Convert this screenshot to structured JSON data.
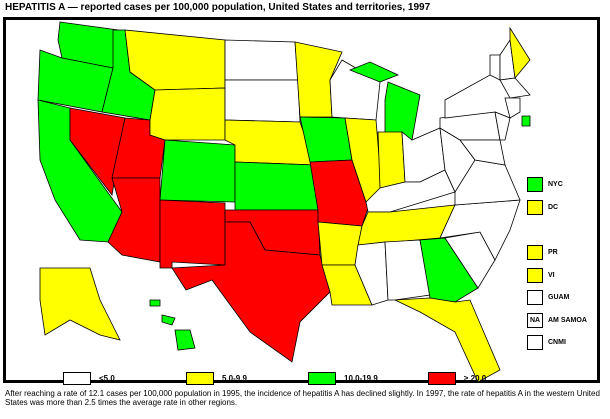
{
  "title": "HEPATITIS A — reported cases per 100,000 population, United States and territories, 1997",
  "colors": {
    "lt5": "#ffffff",
    "5to9.9": "#ffff00",
    "10to19.9": "#00ff00",
    "ge20": "#ff0000"
  },
  "legend": [
    {
      "label": "<5.0",
      "color": "#ffffff"
    },
    {
      "label": "5.0-9.9",
      "color": "#ffff00"
    },
    {
      "label": "10.0-19.9",
      "color": "#00ff00"
    },
    {
      "label": "≥ 20.0",
      "color": "#ff0000"
    }
  ],
  "insets": [
    {
      "label": "NYC",
      "color": "#00ff00",
      "mark": ""
    },
    {
      "label": "DC",
      "color": "#ffff00",
      "mark": ""
    },
    {
      "label": "PR",
      "color": "#ffff00",
      "mark": ""
    },
    {
      "label": "VI",
      "color": "#ffff00",
      "mark": ""
    },
    {
      "label": "GUAM",
      "color": "#ffffff",
      "mark": ""
    },
    {
      "label": "AM SAMOA",
      "color": "#ffffff",
      "mark": "NA"
    },
    {
      "label": "CNMI",
      "color": "#ffffff",
      "mark": ""
    }
  ],
  "states": {
    "WA": "10.0-19.9",
    "OR": "10.0-19.9",
    "CA": "10.0-19.9",
    "ID": "10.0-19.9",
    "NV": "≥ 20.0",
    "UT": "≥ 20.0",
    "AZ": "≥ 20.0",
    "MT": "5.0-9.9",
    "WY": "5.0-9.9",
    "CO": "10.0-19.9",
    "NM": "≥ 20.0",
    "ND": "<5.0",
    "SD": "<5.0",
    "NE": "5.0-9.9",
    "KS": "10.0-19.9",
    "OK": "≥ 20.0",
    "TX": "≥ 20.0",
    "MN": "5.0-9.9",
    "IA": "10.0-19.9",
    "MO": "≥ 20.0",
    "AR": "5.0-9.9",
    "LA": "5.0-9.9",
    "WI": "<5.0",
    "IL": "5.0-9.9",
    "MI": "10.0-19.9",
    "IN": "5.0-9.9",
    "OH": "<5.0",
    "KY": "<5.0",
    "TN": "5.0-9.9",
    "MS": "<5.0",
    "AL": "<5.0",
    "GA": "10.0-19.9",
    "FL": "5.0-9.9",
    "SC": "<5.0",
    "NC": "<5.0",
    "VA": "<5.0",
    "WV": "<5.0",
    "PA": "<5.0",
    "NY": "<5.0",
    "ME": "5.0-9.9",
    "RI": "10.0-19.9",
    "AK": "5.0-9.9",
    "HI": "10.0-19.9"
  },
  "note": "After reaching a rate of 12.1 cases per 100,000 population in 1995, the incidence of hepatitis A has declined slightly. In 1997, the rate of hepatitis A in the western United States was more than 2.5 times the average rate in other regions."
}
